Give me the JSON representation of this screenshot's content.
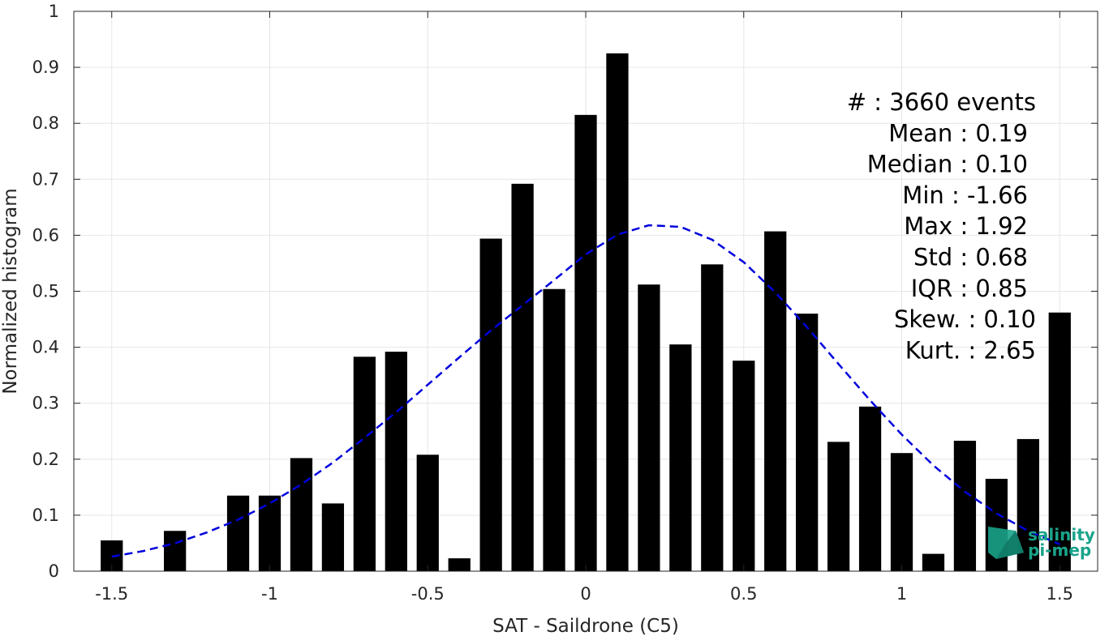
{
  "chart_data": {
    "type": "bar",
    "xlabel": "SAT - Saildrone (C5)",
    "ylabel": "Normalized histogram",
    "xlim": [
      -1.62,
      1.62
    ],
    "ylim": [
      0,
      1
    ],
    "xticks": [
      -1.5,
      -1,
      -0.5,
      0,
      0.5,
      1,
      1.5
    ],
    "xtick_labels": [
      "-1.5",
      "-1",
      "-0.5",
      "0",
      "0.5",
      "1",
      "1.5"
    ],
    "yticks": [
      0,
      0.1,
      0.2,
      0.3,
      0.4,
      0.5,
      0.6,
      0.7,
      0.8,
      0.9,
      1
    ],
    "ytick_labels": [
      "0",
      "0.1",
      "0.2",
      "0.3",
      "0.4",
      "0.5",
      "0.6",
      "0.7",
      "0.8",
      "0.9",
      "1"
    ],
    "grid": true,
    "bar_width": 0.07,
    "series": [
      {
        "x": [
          -1.5,
          -1.3,
          -1.1,
          -1.0,
          -0.9,
          -0.8,
          -0.7,
          -0.6,
          -0.5,
          -0.4,
          -0.3,
          -0.2,
          -0.1,
          0.0,
          0.1,
          0.2,
          0.3,
          0.4,
          0.5,
          0.6,
          0.7,
          0.8,
          0.9,
          1.0,
          1.1,
          1.2,
          1.3,
          1.4,
          1.5
        ],
        "values": [
          0.055,
          0.072,
          0.135,
          0.135,
          0.202,
          0.121,
          0.383,
          0.392,
          0.208,
          0.023,
          0.594,
          0.692,
          0.504,
          0.815,
          0.925,
          0.512,
          0.405,
          0.548,
          0.376,
          0.607,
          0.46,
          0.231,
          0.294,
          0.211,
          0.031,
          0.233,
          0.165,
          0.236,
          0.462
        ],
        "color": "#000000"
      }
    ],
    "fit_curve": {
      "style": "dashed",
      "color": "#0000dd",
      "x": [
        -1.5,
        -1.4,
        -1.3,
        -1.2,
        -1.1,
        -1.0,
        -0.9,
        -0.8,
        -0.7,
        -0.6,
        -0.5,
        -0.4,
        -0.3,
        -0.2,
        -0.1,
        0.0,
        0.1,
        0.2,
        0.3,
        0.4,
        0.5,
        0.6,
        0.7,
        0.8,
        0.9,
        1.0,
        1.1,
        1.2,
        1.3,
        1.4,
        1.5
      ],
      "y": [
        0.026,
        0.036,
        0.05,
        0.069,
        0.092,
        0.121,
        0.155,
        0.194,
        0.238,
        0.284,
        0.333,
        0.382,
        0.43,
        0.475,
        0.52,
        0.566,
        0.601,
        0.618,
        0.615,
        0.592,
        0.552,
        0.498,
        0.436,
        0.37,
        0.305,
        0.244,
        0.189,
        0.142,
        0.103,
        0.072,
        0.048
      ]
    },
    "legend": "none"
  },
  "stats": [
    {
      "label": "#  : 3660 events",
      "indent": "right"
    },
    {
      "label": "Mean : 0.19",
      "indent": "inner"
    },
    {
      "label": "Median : 0.10",
      "indent": "inner"
    },
    {
      "label": "Min : -1.66",
      "indent": "inner"
    },
    {
      "label": "Max : 1.92",
      "indent": "inner"
    },
    {
      "label": "Std : 0.68",
      "indent": "inner"
    },
    {
      "label": "IQR : 0.85",
      "indent": "inner"
    },
    {
      "label": "Skew. : 0.10",
      "indent": "right"
    },
    {
      "label": "Kurt. : 2.65",
      "indent": "right"
    }
  ],
  "logo": {
    "line1": "salinity",
    "line2": "pi-mep",
    "color": "#1aa38a"
  }
}
